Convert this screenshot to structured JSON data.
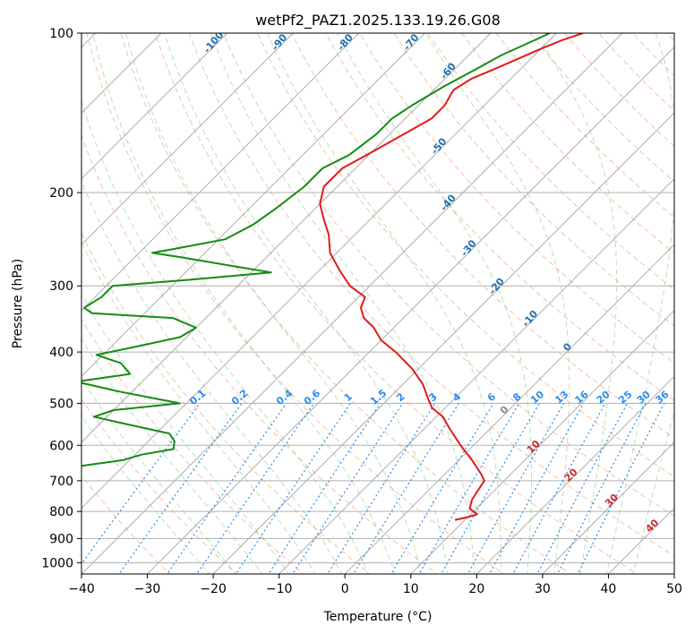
{
  "chart_data": {
    "type": "line",
    "title": "wetPf2_PAZ1.2025.133.19.26.G08",
    "xlabel": "Temperature (°C)",
    "ylabel": "Pressure (hPa)",
    "xlim": [
      -40,
      50
    ],
    "ylim": [
      1050,
      100
    ],
    "y_scale": "log",
    "skew": true,
    "grid": true,
    "x_ticks": [
      -40,
      -30,
      -20,
      -10,
      0,
      10,
      20,
      30,
      40,
      50
    ],
    "y_ticks": [
      100,
      200,
      300,
      400,
      500,
      600,
      700,
      800,
      900,
      1000
    ],
    "colors": {
      "temperature": "#e31a1c",
      "dewpoint": "#138c13",
      "dry_adiabat": "#f4a582",
      "moist_adiabat": "#74c476",
      "mixing_ratio": "#2a8cf0",
      "isotherm": "#999999"
    },
    "series": [
      {
        "key": "temperature",
        "color": "#e31a1c",
        "points": [
          [
            100,
            -46
          ],
          [
            103,
            -48
          ],
          [
            107,
            -50
          ],
          [
            112,
            -52
          ],
          [
            117,
            -54
          ],
          [
            122,
            -56
          ],
          [
            128,
            -57
          ],
          [
            137,
            -56
          ],
          [
            145,
            -56
          ],
          [
            156,
            -58
          ],
          [
            168,
            -60
          ],
          [
            180,
            -62
          ],
          [
            195,
            -62
          ],
          [
            210,
            -60
          ],
          [
            225,
            -57
          ],
          [
            240,
            -54
          ],
          [
            260,
            -51
          ],
          [
            280,
            -47
          ],
          [
            300,
            -43
          ],
          [
            315,
            -39
          ],
          [
            330,
            -38
          ],
          [
            345,
            -36
          ],
          [
            360,
            -33
          ],
          [
            380,
            -30
          ],
          [
            400,
            -26
          ],
          [
            430,
            -21
          ],
          [
            460,
            -17
          ],
          [
            490,
            -14
          ],
          [
            510,
            -12
          ],
          [
            530,
            -9
          ],
          [
            560,
            -6
          ],
          [
            600,
            -2
          ],
          [
            640,
            2
          ],
          [
            680,
            5.5
          ],
          [
            700,
            7
          ],
          [
            730,
            7.5
          ],
          [
            760,
            8
          ],
          [
            790,
            9
          ],
          [
            810,
            11
          ],
          [
            820,
            10
          ],
          [
            830,
            8.5
          ]
        ]
      },
      {
        "key": "dewpoint",
        "color": "#138c13",
        "points": [
          [
            100,
            -51
          ],
          [
            105,
            -53
          ],
          [
            110,
            -55
          ],
          [
            118,
            -57
          ],
          [
            126,
            -59
          ],
          [
            137,
            -61
          ],
          [
            145,
            -62
          ],
          [
            155,
            -62
          ],
          [
            170,
            -63
          ],
          [
            180,
            -65
          ],
          [
            195,
            -65
          ],
          [
            215,
            -66
          ],
          [
            230,
            -67
          ],
          [
            245,
            -69
          ],
          [
            255,
            -75
          ],
          [
            260,
            -78
          ],
          [
            265,
            -73
          ],
          [
            275,
            -64
          ],
          [
            283,
            -57
          ],
          [
            292,
            -68
          ],
          [
            300,
            -79
          ],
          [
            315,
            -79
          ],
          [
            330,
            -80
          ],
          [
            338,
            -78
          ],
          [
            345,
            -65
          ],
          [
            360,
            -60
          ],
          [
            375,
            -61
          ],
          [
            390,
            -66
          ],
          [
            405,
            -71
          ],
          [
            420,
            -66
          ],
          [
            440,
            -63
          ],
          [
            455,
            -70
          ],
          [
            475,
            -62
          ],
          [
            500,
            -51
          ],
          [
            515,
            -60
          ],
          [
            530,
            -62
          ],
          [
            550,
            -55
          ],
          [
            570,
            -48
          ],
          [
            590,
            -46
          ],
          [
            610,
            -45
          ],
          [
            625,
            -49
          ],
          [
            640,
            -51
          ],
          [
            655,
            -56
          ],
          [
            675,
            -63
          ],
          [
            685,
            -66
          ],
          [
            695,
            -62
          ],
          [
            710,
            -60
          ],
          [
            730,
            -59
          ],
          [
            760,
            -63
          ],
          [
            790,
            -61
          ],
          [
            805,
            -57
          ],
          [
            815,
            -61
          ],
          [
            822,
            -63
          ],
          [
            826,
            -58
          ],
          [
            830,
            -52
          ]
        ]
      }
    ],
    "dry_adiabat_labels": [
      "-100",
      "-90",
      "-80",
      "-70",
      "-60",
      "-50",
      "-40",
      "-30",
      "-20",
      "-10",
      "0",
      "10",
      "20",
      "30",
      "40"
    ],
    "moist_adiabat_labels": [
      "0",
      "10",
      "20",
      "30",
      "40"
    ],
    "mixing_ratio_labels": [
      "0.1",
      "0.2",
      "0.4",
      "0.6",
      "1",
      "1.5",
      "2",
      "3",
      "4",
      "6",
      "8",
      "10",
      "13",
      "16",
      "20",
      "25",
      "30",
      "36"
    ]
  }
}
